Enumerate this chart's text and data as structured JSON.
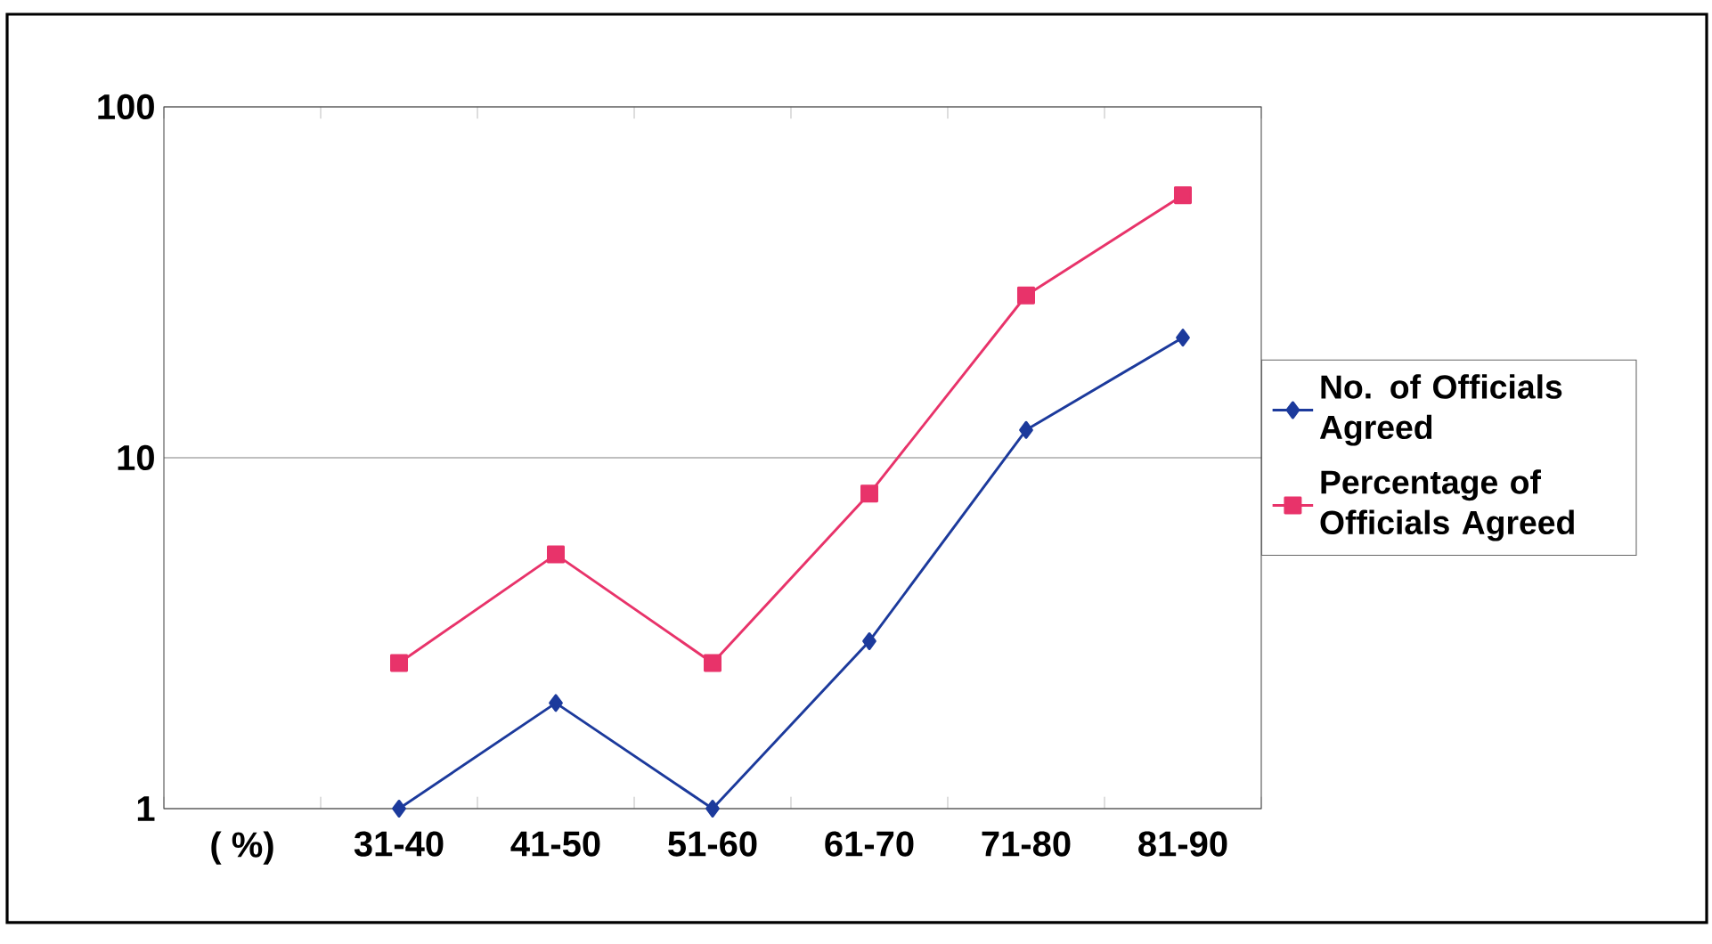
{
  "chart_data": {
    "type": "line",
    "categories": [
      "( %)",
      "31-40",
      "41-50",
      "51-60",
      "61-70",
      "71-80",
      "81-90"
    ],
    "series": [
      {
        "name": "No. of Officials Agreed",
        "color": "#1c3a9c",
        "marker": "diamond",
        "values": [
          null,
          1,
          2,
          1,
          3,
          12,
          22
        ]
      },
      {
        "name": "Percentage of Officials Agreed",
        "color": "#e8336a",
        "marker": "square",
        "values": [
          null,
          2.6,
          5.3,
          2.6,
          7.9,
          29,
          56
        ]
      }
    ],
    "log": "y",
    "ylim": [
      1,
      100
    ],
    "yticks": [
      1,
      10,
      100
    ],
    "grid": "y",
    "legend": "right",
    "line_style": "solid"
  }
}
